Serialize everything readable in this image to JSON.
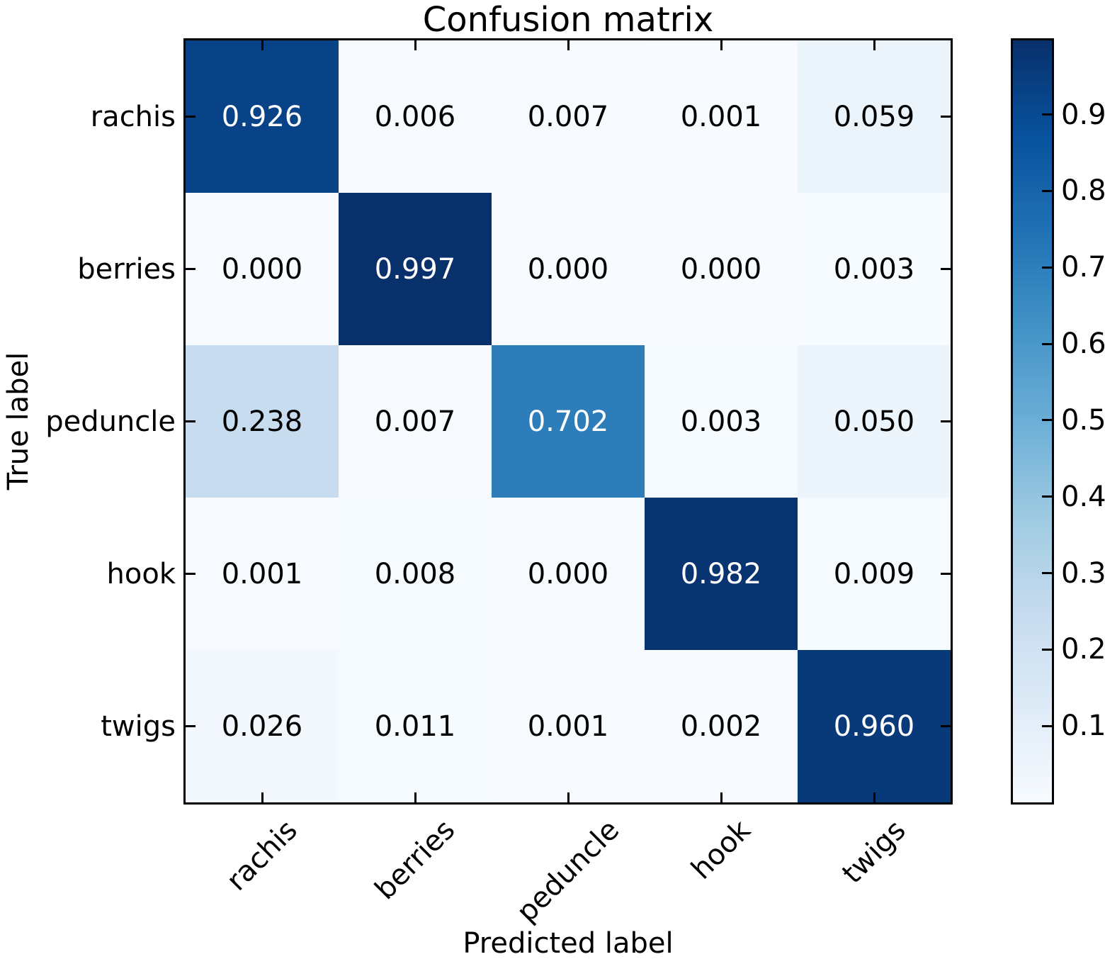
{
  "title": "Confusion matrix",
  "axes": {
    "x_title": "Predicted label",
    "y_title": "True label"
  },
  "chart_data": {
    "type": "heatmap",
    "title": "Confusion matrix",
    "xlabel": "Predicted label",
    "ylabel": "True label",
    "classes": [
      "rachis",
      "berries",
      "peduncle",
      "hook",
      "twigs"
    ],
    "x_tick_labels": [
      "rachis",
      "berries",
      "peduncle",
      "hook",
      "twigs"
    ],
    "y_tick_labels": [
      "rachis",
      "berries",
      "peduncle",
      "hook",
      "twigs"
    ],
    "matrix": [
      [
        0.926,
        0.006,
        0.007,
        0.001,
        0.059
      ],
      [
        0.0,
        0.997,
        0.0,
        0.0,
        0.003
      ],
      [
        0.238,
        0.007,
        0.702,
        0.003,
        0.05
      ],
      [
        0.001,
        0.008,
        0.0,
        0.982,
        0.009
      ],
      [
        0.026,
        0.011,
        0.001,
        0.002,
        0.96
      ]
    ],
    "value_decimals": 3,
    "vmin": 0.0,
    "vmax": 0.997,
    "colormap": "Blues",
    "colormap_stops": [
      {
        "t": 0.0,
        "rgb": [
          247,
          251,
          255
        ]
      },
      {
        "t": 0.125,
        "rgb": [
          222,
          235,
          247
        ]
      },
      {
        "t": 0.25,
        "rgb": [
          198,
          219,
          239
        ]
      },
      {
        "t": 0.375,
        "rgb": [
          158,
          202,
          225
        ]
      },
      {
        "t": 0.5,
        "rgb": [
          107,
          174,
          214
        ]
      },
      {
        "t": 0.625,
        "rgb": [
          66,
          146,
          198
        ]
      },
      {
        "t": 0.75,
        "rgb": [
          33,
          113,
          181
        ]
      },
      {
        "t": 0.875,
        "rgb": [
          8,
          81,
          156
        ]
      },
      {
        "t": 1.0,
        "rgb": [
          8,
          48,
          107
        ]
      }
    ],
    "colorbar_position": "right",
    "colorbar_ticks": [
      0.1,
      0.2,
      0.3,
      0.4,
      0.5,
      0.6,
      0.7,
      0.8,
      0.9
    ],
    "colorbar_tick_labels": [
      "0.1",
      "0.2",
      "0.3",
      "0.4",
      "0.5",
      "0.6",
      "0.7",
      "0.8",
      "0.9"
    ],
    "grid": false,
    "colors": {
      "cell_text_high": "#ffffff",
      "cell_text_low": "#000000",
      "frame": "#000000",
      "background": "#ffffff"
    }
  }
}
